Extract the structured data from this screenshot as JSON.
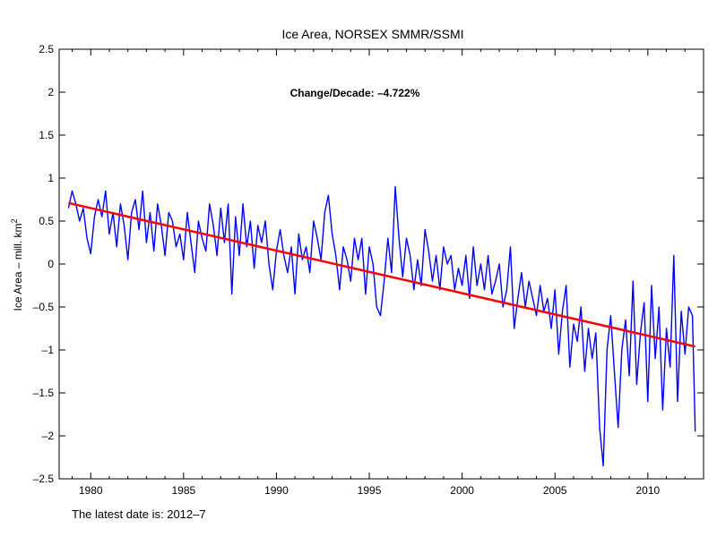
{
  "chart_data": {
    "type": "line",
    "title": "Ice Area, NORSEX SMMR/SSMI",
    "xlabel": "",
    "ylabel": "Ice Area – mill. km",
    "ylabel_superscript": "2",
    "annotation": "Change/Decade: –4.722%",
    "footer": "The latest date is: 2012–7",
    "xlim": [
      1978.3,
      2013.0
    ],
    "ylim": [
      -2.5,
      2.5
    ],
    "xticks": [
      1980,
      1985,
      1990,
      1995,
      2000,
      2005,
      2010
    ],
    "xtick_labels": [
      "1980",
      "1985",
      "1990",
      "1995",
      "2000",
      "2005",
      "2010"
    ],
    "yticks": [
      -2.5,
      -2,
      -1.5,
      -1,
      -0.5,
      0,
      0.5,
      1,
      1.5,
      2,
      2.5
    ],
    "ytick_labels": [
      "–2.5",
      "–2",
      "–1.5",
      "–1",
      "–0.5",
      "0",
      "0.5",
      "1",
      "1.5",
      "2",
      "2.5"
    ],
    "grid": false,
    "legend": "none",
    "series": [
      {
        "color": "#0000ff",
        "x": [
          1978.8,
          1979.0,
          1979.2,
          1979.4,
          1979.6,
          1979.8,
          1980.0,
          1980.2,
          1980.4,
          1980.6,
          1980.8,
          1981.0,
          1981.2,
          1981.4,
          1981.6,
          1981.8,
          1982.0,
          1982.2,
          1982.4,
          1982.6,
          1982.8,
          1983.0,
          1983.2,
          1983.4,
          1983.6,
          1983.8,
          1984.0,
          1984.2,
          1984.4,
          1984.6,
          1984.8,
          1985.0,
          1985.2,
          1985.4,
          1985.6,
          1985.8,
          1986.0,
          1986.2,
          1986.4,
          1986.6,
          1986.8,
          1987.0,
          1987.2,
          1987.4,
          1987.6,
          1987.8,
          1988.0,
          1988.2,
          1988.4,
          1988.6,
          1988.8,
          1989.0,
          1989.2,
          1989.4,
          1989.6,
          1989.8,
          1990.0,
          1990.2,
          1990.4,
          1990.6,
          1990.8,
          1991.0,
          1991.2,
          1991.4,
          1991.6,
          1991.8,
          1992.0,
          1992.2,
          1992.4,
          1992.6,
          1992.8,
          1993.0,
          1993.2,
          1993.4,
          1993.6,
          1993.8,
          1994.0,
          1994.2,
          1994.4,
          1994.6,
          1994.8,
          1995.0,
          1995.2,
          1995.4,
          1995.6,
          1995.8,
          1996.0,
          1996.2,
          1996.4,
          1996.6,
          1996.8,
          1997.0,
          1997.2,
          1997.4,
          1997.6,
          1997.8,
          1998.0,
          1998.2,
          1998.4,
          1998.6,
          1998.8,
          1999.0,
          1999.2,
          1999.4,
          1999.6,
          1999.8,
          2000.0,
          2000.2,
          2000.4,
          2000.6,
          2000.8,
          2001.0,
          2001.2,
          2001.4,
          2001.6,
          2001.8,
          2002.0,
          2002.2,
          2002.4,
          2002.6,
          2002.8,
          2003.0,
          2003.2,
          2003.4,
          2003.6,
          2003.8,
          2004.0,
          2004.2,
          2004.4,
          2004.6,
          2004.8,
          2005.0,
          2005.2,
          2005.4,
          2005.6,
          2005.8,
          2006.0,
          2006.2,
          2006.4,
          2006.6,
          2006.8,
          2007.0,
          2007.2,
          2007.4,
          2007.6,
          2007.8,
          2008.0,
          2008.2,
          2008.4,
          2008.6,
          2008.8,
          2009.0,
          2009.2,
          2009.4,
          2009.6,
          2009.8,
          2010.0,
          2010.2,
          2010.4,
          2010.6,
          2010.8,
          2011.0,
          2011.2,
          2011.4,
          2011.6,
          2011.8,
          2012.0,
          2012.2,
          2012.4,
          2012.55
        ],
        "y": [
          0.65,
          0.85,
          0.7,
          0.5,
          0.65,
          0.3,
          0.12,
          0.55,
          0.75,
          0.55,
          0.85,
          0.35,
          0.6,
          0.2,
          0.7,
          0.45,
          0.05,
          0.6,
          0.75,
          0.4,
          0.85,
          0.25,
          0.6,
          0.15,
          0.7,
          0.45,
          0.1,
          0.6,
          0.5,
          0.2,
          0.35,
          0.05,
          0.6,
          0.25,
          -0.1,
          0.5,
          0.3,
          0.15,
          0.7,
          0.45,
          0.1,
          0.65,
          0.25,
          0.7,
          -0.35,
          0.55,
          0.1,
          0.7,
          0.2,
          0.5,
          -0.05,
          0.45,
          0.25,
          0.5,
          0.0,
          -0.3,
          0.15,
          0.4,
          0.1,
          -0.1,
          0.2,
          -0.35,
          0.35,
          0.05,
          0.2,
          -0.1,
          0.5,
          0.3,
          0.05,
          0.6,
          0.8,
          0.35,
          0.1,
          -0.3,
          0.2,
          0.05,
          -0.2,
          0.3,
          0.05,
          0.3,
          -0.35,
          0.2,
          0.0,
          -0.5,
          -0.6,
          -0.2,
          0.3,
          -0.1,
          0.9,
          0.3,
          -0.15,
          0.3,
          0.1,
          -0.3,
          0.05,
          -0.25,
          0.4,
          0.15,
          -0.2,
          0.1,
          -0.3,
          0.2,
          0.0,
          0.1,
          -0.3,
          -0.05,
          -0.25,
          0.1,
          -0.4,
          0.2,
          -0.25,
          0.0,
          -0.3,
          0.1,
          -0.35,
          -0.2,
          0.0,
          -0.5,
          -0.3,
          0.2,
          -0.75,
          -0.4,
          -0.1,
          -0.5,
          -0.2,
          -0.4,
          -0.6,
          -0.25,
          -0.55,
          -0.4,
          -0.75,
          -0.3,
          -1.05,
          -0.55,
          -0.25,
          -1.2,
          -0.7,
          -0.9,
          -0.5,
          -1.25,
          -0.75,
          -1.1,
          -0.8,
          -1.9,
          -2.35,
          -1.0,
          -0.6,
          -1.25,
          -1.9,
          -1.0,
          -0.65,
          -1.3,
          -0.2,
          -1.4,
          -0.8,
          -0.45,
          -1.6,
          -0.25,
          -1.1,
          -0.5,
          -1.7,
          -0.75,
          -1.2,
          0.1,
          -1.6,
          -0.55,
          -1.05,
          -0.5,
          -0.6,
          -1.95
        ]
      },
      {
        "color": "#ff0000",
        "x": [
          1978.8,
          2012.55
        ],
        "y": [
          0.71,
          -0.96
        ]
      }
    ]
  }
}
